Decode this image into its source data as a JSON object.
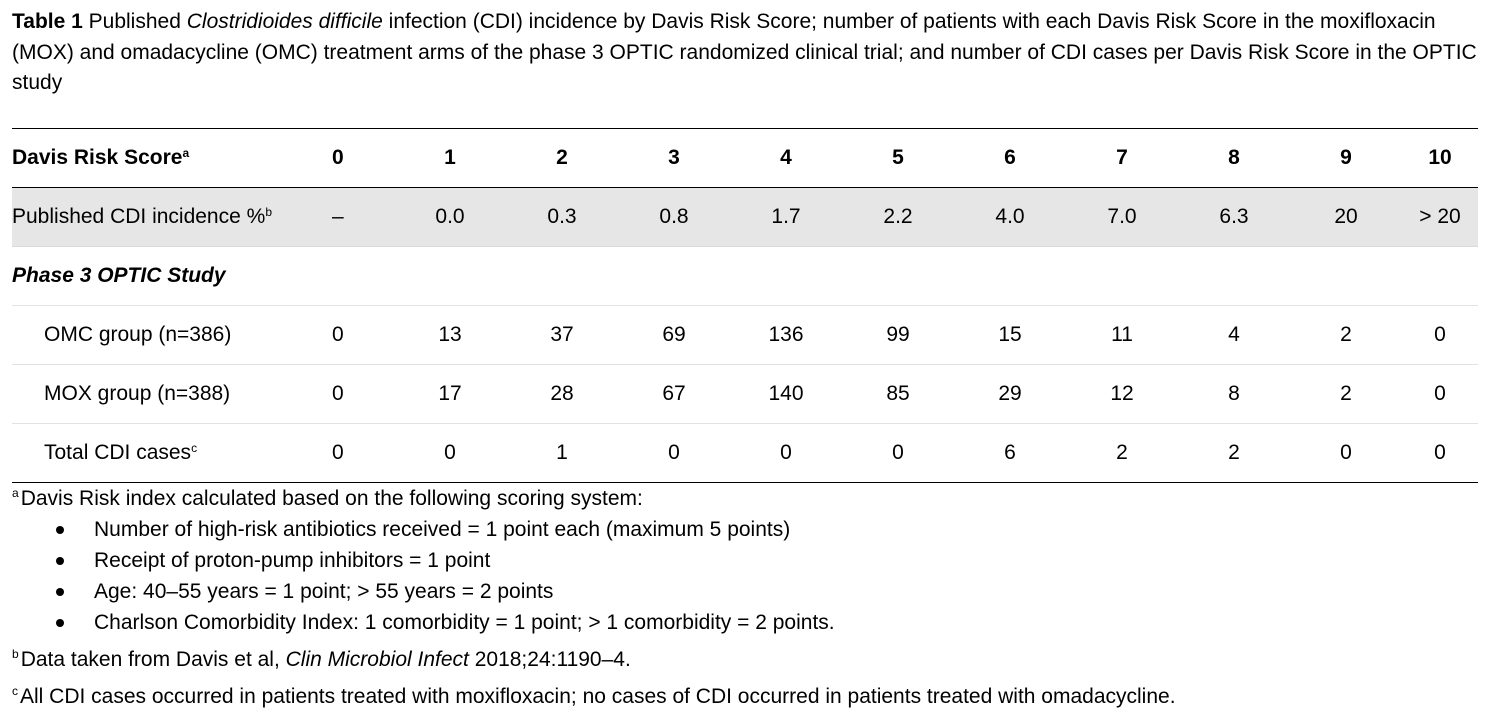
{
  "caption": {
    "label": "Table 1",
    "text_before_italic": "Published ",
    "italic": "Clostridioides difficile",
    "text_after_italic": " infection (CDI) incidence by Davis Risk Score; number of patients with each Davis Risk Score in the moxifloxacin (MOX) and omadacycline (OMC) treatment arms of the phase 3 OPTIC randomized clinical trial; and number of CDI cases per Davis Risk Score in the OPTIC study"
  },
  "table": {
    "header": {
      "label": "Davis Risk Score",
      "label_sup": "a",
      "columns": [
        "0",
        "1",
        "2",
        "3",
        "4",
        "5",
        "6",
        "7",
        "8",
        "9",
        "10"
      ]
    },
    "published": {
      "label": "Published CDI incidence %",
      "label_sup": "b",
      "values": [
        "–",
        "0.0",
        "0.3",
        "0.8",
        "1.7",
        "2.2",
        "4.0",
        "7.0",
        "6.3",
        "20",
        "> 20"
      ]
    },
    "section_title": "Phase 3 OPTIC Study",
    "omc": {
      "label": "OMC group (n=386)",
      "values": [
        "0",
        "13",
        "37",
        "69",
        "136",
        "99",
        "15",
        "11",
        "4",
        "2",
        "0"
      ]
    },
    "mox": {
      "label": "MOX group (n=388)",
      "values": [
        "0",
        "17",
        "28",
        "67",
        "140",
        "85",
        "29",
        "12",
        "8",
        "2",
        "0"
      ]
    },
    "total": {
      "label": "Total CDI cases",
      "label_sup": "c",
      "values": [
        "0",
        "0",
        "1",
        "0",
        "0",
        "0",
        "6",
        "2",
        "2",
        "0",
        "0"
      ]
    }
  },
  "footnotes": {
    "a": {
      "marker": "a",
      "text": "Davis Risk index calculated based on the following scoring system:",
      "bullets": [
        "Number of high-risk antibiotics received = 1 point each (maximum 5 points)",
        "Receipt of proton-pump inhibitors = 1 point",
        "Age: 40–55 years = 1 point; > 55 years = 2 points",
        "Charlson Comorbidity Index: 1 comorbidity = 1 point; > 1 comorbidity = 2 points."
      ]
    },
    "b": {
      "marker": "b",
      "text_before": "Data taken from Davis et al, ",
      "italic": "Clin Microbiol Infect",
      "text_after": " 2018;24:1190–4."
    },
    "c": {
      "marker": "c",
      "text": "All CDI cases occurred in patients treated with moxifloxacin; no cases of CDI occurred in patients treated with omadacycline."
    }
  }
}
